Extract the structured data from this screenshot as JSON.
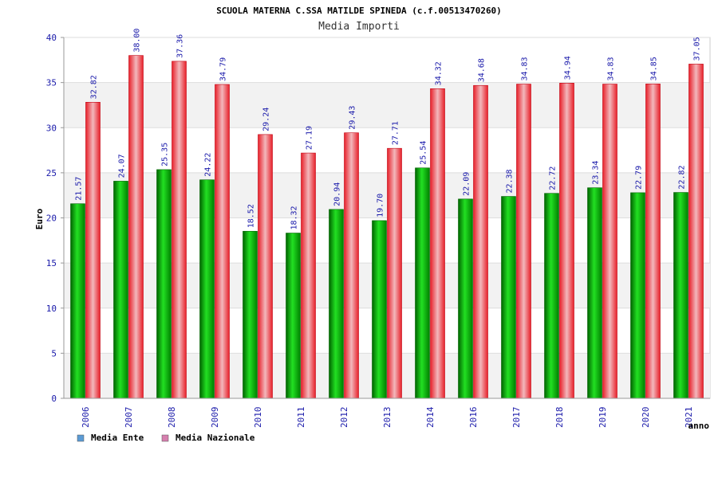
{
  "chart_data": {
    "type": "bar",
    "title": "SCUOLA MATERNA C.SSA MATILDE SPINEDA (c.f.00513470260)",
    "subtitle": "Media Importi",
    "xlabel": "anno",
    "ylabel": "Euro",
    "ylim": [
      0,
      40
    ],
    "yticks": [
      0,
      5,
      10,
      15,
      20,
      25,
      30,
      35,
      40
    ],
    "grid": true,
    "legend_position": "bottom-left",
    "categories": [
      "2006",
      "2007",
      "2008",
      "2009",
      "2010",
      "2011",
      "2012",
      "2013",
      "2014",
      "2016",
      "2017",
      "2018",
      "2019",
      "2020",
      "2021"
    ],
    "series": [
      {
        "name": "Media Ente",
        "color": "#00b000",
        "legend_color": "#5b9bd5",
        "values": [
          21.57,
          24.07,
          25.35,
          24.22,
          18.52,
          18.32,
          20.94,
          19.7,
          25.54,
          22.09,
          22.38,
          22.72,
          23.34,
          22.79,
          22.82
        ],
        "labels": [
          "21.57",
          "24.07",
          "25.35",
          "24.22",
          "18.52",
          "18.32",
          "20.94",
          "19.70",
          "25.54",
          "22.09",
          "22.38",
          "22.72",
          "23.34",
          "22.79",
          "22.82"
        ]
      },
      {
        "name": "Media Nazionale",
        "color": "#e8202a",
        "legend_color": "#d67fae",
        "values": [
          32.82,
          38.0,
          37.36,
          34.79,
          29.24,
          27.19,
          29.43,
          27.71,
          34.32,
          34.68,
          34.83,
          34.94,
          34.83,
          34.85,
          37.05
        ],
        "labels": [
          "32.82",
          "38.00",
          "37.36",
          "34.79",
          "29.24",
          "27.19",
          "29.43",
          "27.71",
          "34.32",
          "34.68",
          "34.83",
          "34.94",
          "34.83",
          "34.85",
          "37.05"
        ]
      }
    ]
  }
}
